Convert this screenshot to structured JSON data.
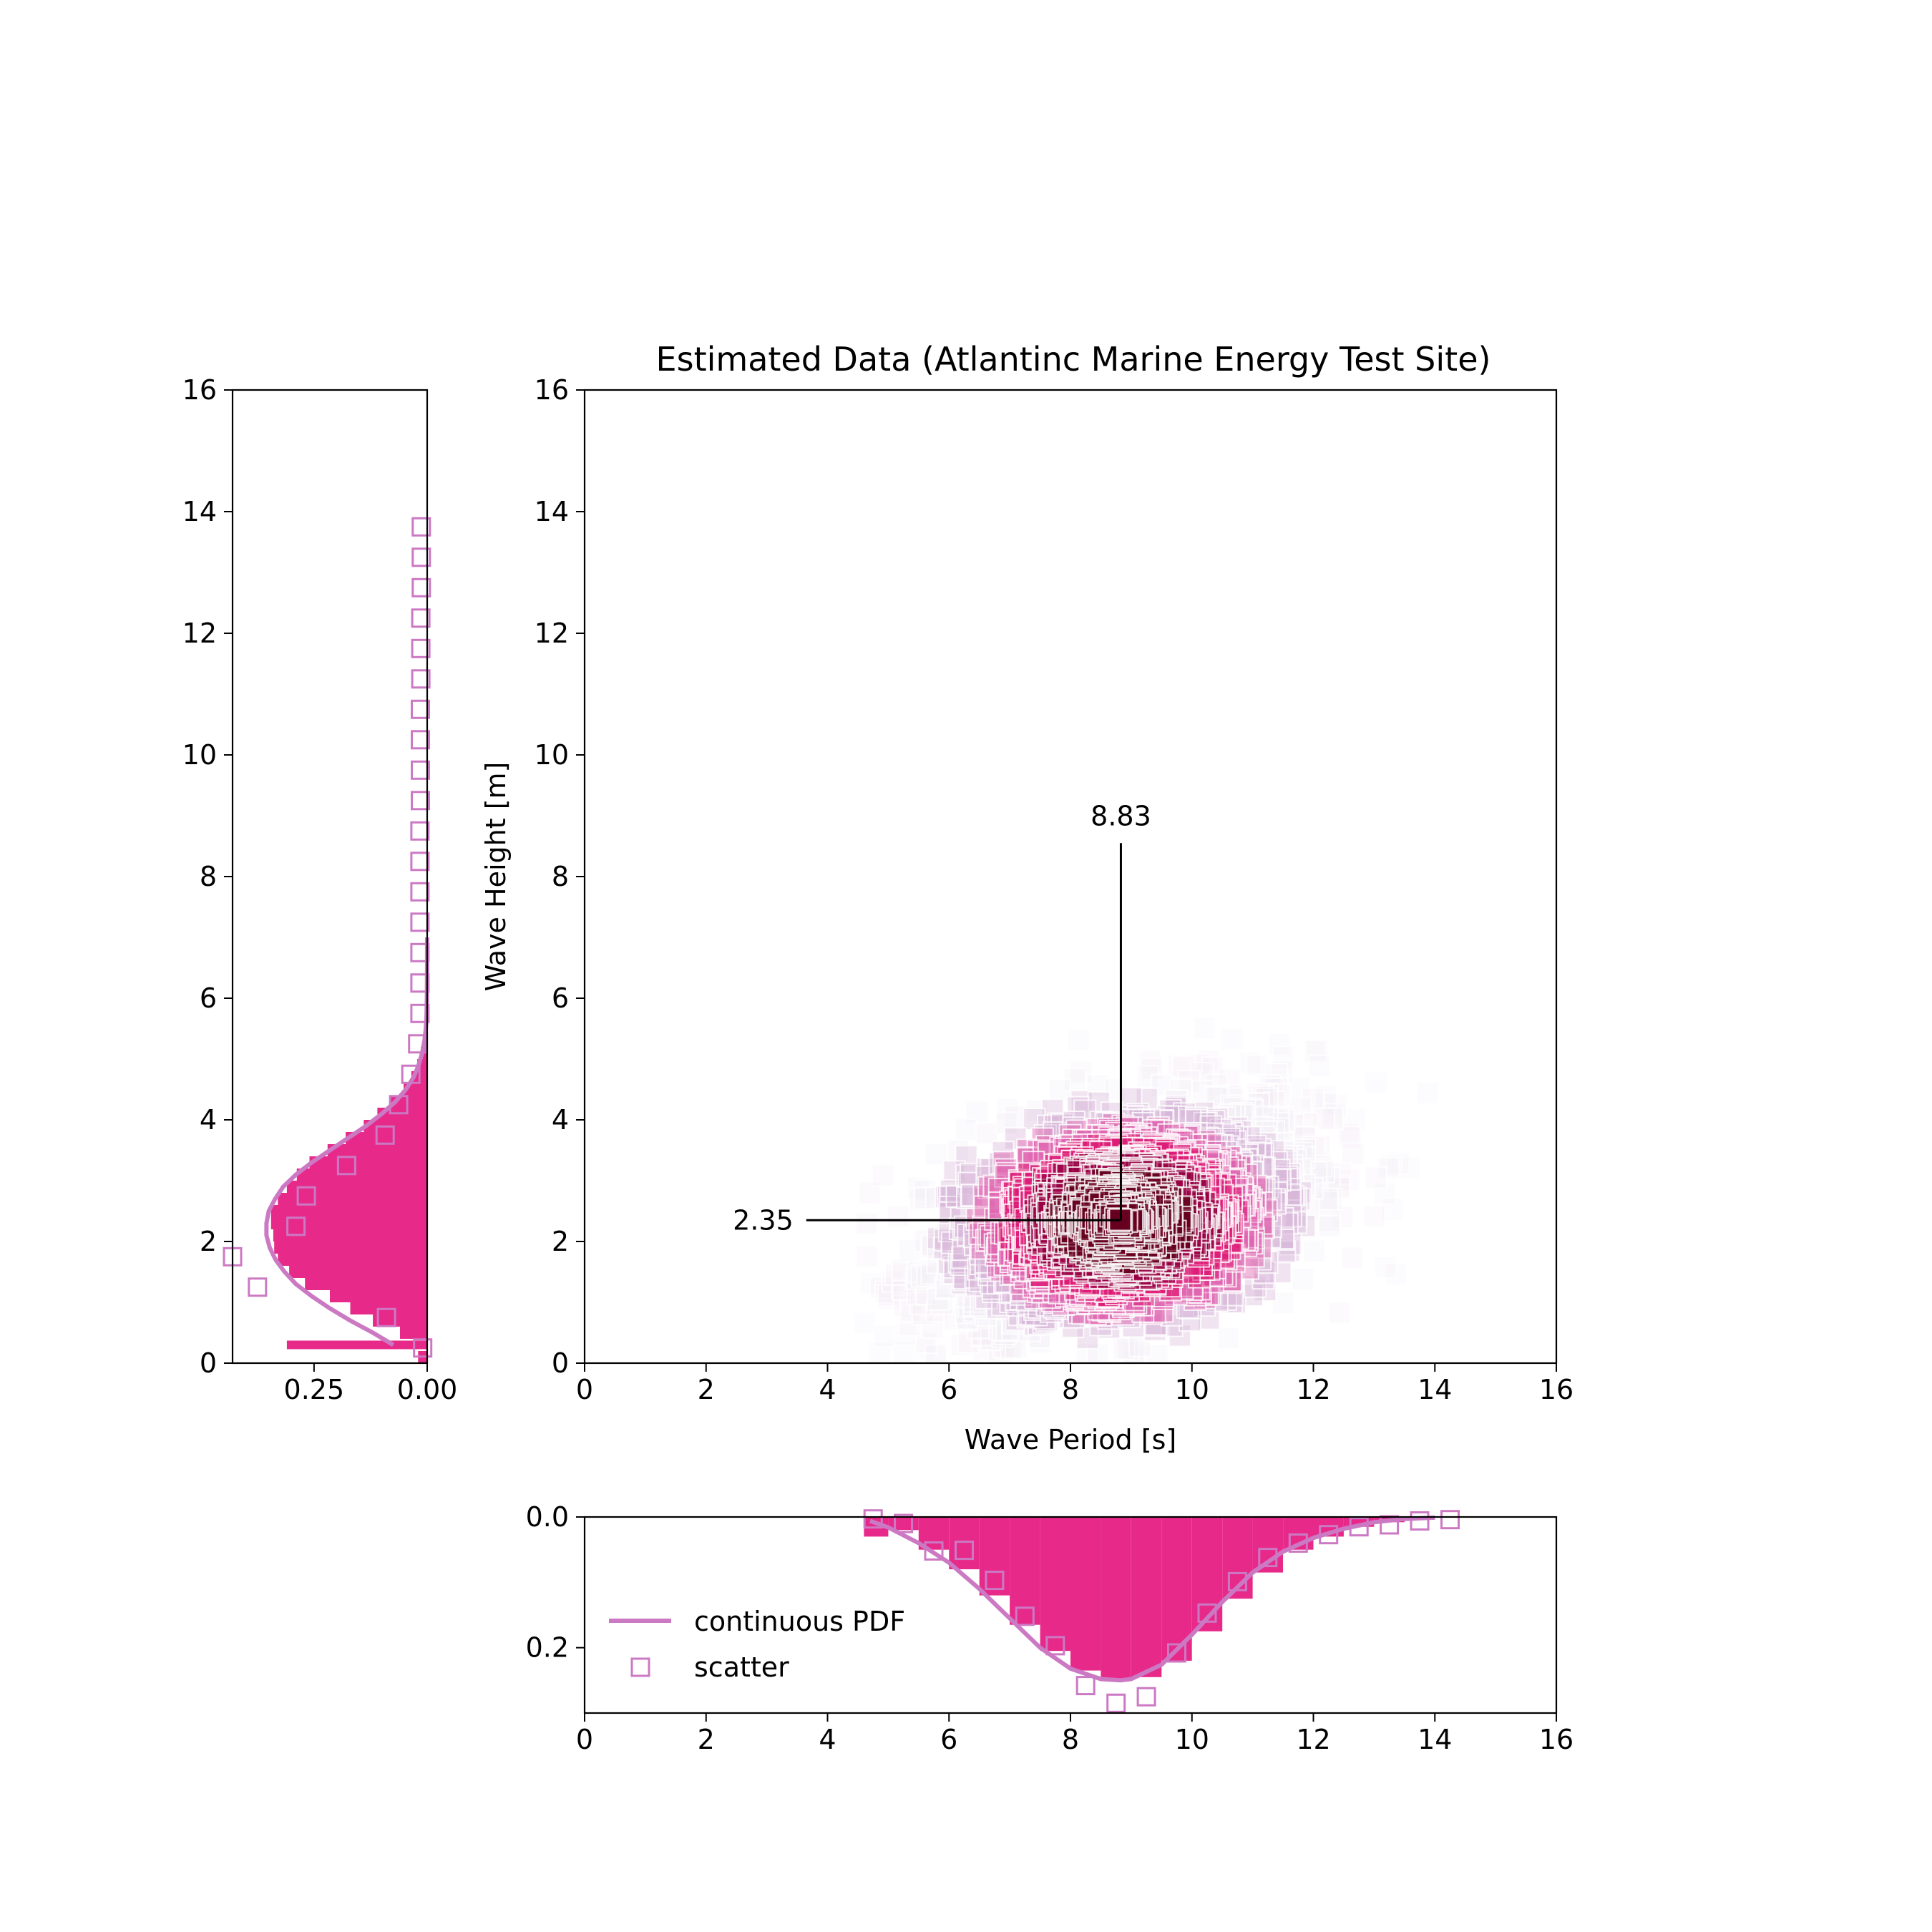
{
  "chart_data": [
    {
      "type": "scatter",
      "panel": "main",
      "title": "Estimated Data (Atlantinc Marine Energy Test Site)",
      "xlabel": "Wave Period [s]",
      "ylabel": "Wave Height [m]",
      "xlim": [
        0,
        16
      ],
      "ylim": [
        0,
        16
      ],
      "xticks": [
        "0",
        "2",
        "4",
        "6",
        "8",
        "10",
        "12",
        "14",
        "16"
      ],
      "yticks": [
        "0",
        "2",
        "4",
        "6",
        "8",
        "10",
        "12",
        "14",
        "16"
      ],
      "marker": "square",
      "colormap": [
        "#f3eef6",
        "#d7b5d8",
        "#df65b0",
        "#dd1c77",
        "#980043",
        "#67001f"
      ],
      "distribution": {
        "center_x": 8.83,
        "center_y": 2.35,
        "sd_x": 1.6,
        "sd_y": 1.05,
        "correlation": 0.4,
        "x_min": 4.6,
        "y_min": 0.1,
        "n_points": 1800
      },
      "annotations": [
        {
          "text": "8.83",
          "orientation": "vertical",
          "x": 8.83,
          "y_from": 2.35,
          "y_to": 8.55
        },
        {
          "text": "2.35",
          "orientation": "horizontal",
          "y": 2.35,
          "x_from": 8.83,
          "x_to": 3.65
        }
      ]
    },
    {
      "type": "area",
      "panel": "x-marginal",
      "orientation": "inverted",
      "xlim": [
        0,
        16
      ],
      "ylim": [
        0.3,
        0.0
      ],
      "xticks": [
        "0",
        "2",
        "4",
        "6",
        "8",
        "10",
        "12",
        "14",
        "16"
      ],
      "yticks": [
        "0.0",
        "0.2"
      ],
      "fill_color": "#e7298a",
      "pdf_color": "#cc79c4",
      "pdf": {
        "x": [
          4.7,
          5.0,
          5.5,
          6.0,
          6.5,
          7.0,
          7.5,
          8.0,
          8.5,
          8.83,
          9.0,
          9.5,
          10.0,
          10.5,
          11.0,
          11.5,
          12.0,
          12.5,
          13.0,
          13.5,
          14.0
        ],
        "y": [
          0.006,
          0.016,
          0.04,
          0.07,
          0.11,
          0.155,
          0.2,
          0.232,
          0.248,
          0.25,
          0.248,
          0.226,
          0.18,
          0.13,
          0.085,
          0.053,
          0.032,
          0.018,
          0.008,
          0.003,
          0.001
        ]
      },
      "histogram": {
        "edges": [
          4.6,
          5.0,
          5.5,
          6.0,
          6.5,
          7.0,
          7.5,
          8.0,
          8.5,
          9.0,
          9.5,
          10.0,
          10.5,
          11.0,
          11.5,
          12.0,
          12.5,
          13.0,
          13.5,
          14.0,
          14.5,
          15.0
        ],
        "values": [
          0.03,
          0.02,
          0.05,
          0.08,
          0.12,
          0.165,
          0.205,
          0.235,
          0.25,
          0.245,
          0.22,
          0.175,
          0.125,
          0.085,
          0.05,
          0.03,
          0.015,
          0.008,
          0.003,
          0.001,
          0.001
        ]
      },
      "scatter": {
        "x": [
          4.75,
          5.25,
          5.75,
          6.25,
          6.75,
          7.25,
          7.75,
          8.25,
          8.75,
          9.25,
          9.75,
          10.25,
          10.75,
          11.25,
          11.75,
          12.25,
          12.75,
          13.25,
          13.75,
          14.25
        ],
        "y": [
          0.003,
          0.01,
          0.052,
          0.051,
          0.097,
          0.152,
          0.197,
          0.258,
          0.285,
          0.275,
          0.208,
          0.147,
          0.099,
          0.062,
          0.04,
          0.027,
          0.015,
          0.012,
          0.006,
          0.004
        ]
      },
      "legend": {
        "position": "lower-left",
        "entries": [
          "continuous PDF",
          "scatter"
        ]
      }
    },
    {
      "type": "area",
      "panel": "y-marginal",
      "orientation": "horizontal-inverted",
      "xlim": [
        0.43,
        0.0
      ],
      "ylim": [
        0,
        16
      ],
      "xticks": [
        "0.25",
        "0.00"
      ],
      "yticks": [
        "0",
        "2",
        "4",
        "6",
        "8",
        "10",
        "12",
        "14",
        "16"
      ],
      "fill_color": "#e7298a",
      "pdf_color": "#cc79c4",
      "pdf": {
        "y": [
          0.3,
          0.5,
          0.7,
          0.9,
          1.1,
          1.3,
          1.5,
          1.7,
          1.9,
          2.1,
          2.3,
          2.5,
          2.7,
          2.9,
          3.1,
          3.3,
          3.5,
          3.7,
          3.9,
          4.1,
          4.3,
          4.5,
          4.7,
          4.9,
          5.1,
          5.3,
          5.5,
          5.7,
          6.0,
          6.5,
          7.0
        ],
        "w": [
          0.075,
          0.12,
          0.17,
          0.215,
          0.255,
          0.29,
          0.315,
          0.335,
          0.348,
          0.355,
          0.355,
          0.35,
          0.336,
          0.318,
          0.29,
          0.255,
          0.215,
          0.175,
          0.135,
          0.1,
          0.07,
          0.047,
          0.03,
          0.019,
          0.011,
          0.006,
          0.003,
          0.0015,
          0.0006,
          0.0002,
          0.0001
        ]
      },
      "histogram": {
        "edges": [
          0.0,
          0.2,
          0.4,
          0.6,
          0.8,
          1.0,
          1.2,
          1.4,
          1.6,
          1.8,
          2.0,
          2.2,
          2.4,
          2.6,
          2.8,
          3.0,
          3.2,
          3.4,
          3.6,
          3.8,
          4.0,
          4.2,
          4.4,
          4.6,
          4.8,
          5.0,
          5.2,
          5.4,
          5.6
        ],
        "values": [
          0.02,
          0.31,
          0.06,
          0.12,
          0.17,
          0.215,
          0.27,
          0.305,
          0.33,
          0.338,
          0.34,
          0.345,
          0.345,
          0.33,
          0.31,
          0.288,
          0.26,
          0.22,
          0.18,
          0.14,
          0.11,
          0.08,
          0.052,
          0.035,
          0.022,
          0.014,
          0.008,
          0.004
        ]
      },
      "scatter": {
        "y": [
          0.25,
          0.75,
          1.25,
          1.75,
          2.25,
          2.75,
          3.25,
          3.75,
          4.25,
          4.75,
          5.25,
          5.75,
          6.25,
          6.75,
          7.25,
          7.75,
          8.25,
          8.75,
          9.25,
          9.75,
          10.25,
          10.75,
          11.25,
          11.75,
          12.25,
          12.75,
          13.25,
          13.75
        ],
        "w": [
          0.01,
          0.09,
          0.375,
          0.43,
          0.29,
          0.267,
          0.178,
          0.093,
          0.063,
          0.036,
          0.021,
          0.016,
          0.016,
          0.016,
          0.016,
          0.016,
          0.016,
          0.016,
          0.015,
          0.015,
          0.015,
          0.015,
          0.014,
          0.014,
          0.014,
          0.013,
          0.013,
          0.013
        ]
      }
    }
  ]
}
